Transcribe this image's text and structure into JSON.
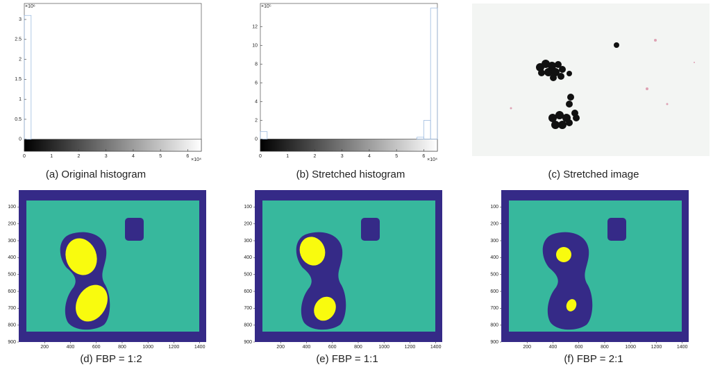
{
  "chart_data": [
    {
      "type": "histogram",
      "caption": "(a) Original histogram",
      "y_exponent": "×10⁶",
      "x_exponent": "×10⁴",
      "bins": [
        0,
        0.25,
        0.5,
        0.75,
        1,
        1.25,
        1.5,
        1.75,
        2,
        2.25,
        2.5,
        2.75,
        3,
        3.25,
        3.5,
        3.75,
        4,
        4.25,
        4.5,
        4.75,
        5,
        5.25,
        5.5,
        5.75,
        6,
        6.25,
        6.5
      ],
      "values": [
        3.1,
        0,
        0,
        0,
        0,
        0,
        0,
        0,
        0,
        0,
        0,
        0,
        0,
        0,
        0,
        0,
        0,
        0,
        0,
        0,
        0,
        0,
        0,
        0,
        0,
        0
      ],
      "color": "#9dbbe0",
      "xlim": [
        0,
        6.5
      ],
      "ylim": [
        -0.3,
        3.4
      ],
      "xticks": [
        0,
        1,
        2,
        3,
        4,
        5,
        6
      ],
      "yticks": [
        0,
        0.5,
        1,
        1.5,
        2,
        2.5,
        3
      ]
    },
    {
      "type": "histogram",
      "caption": "(b) Stretched histogram",
      "y_exponent": "×10⁵",
      "x_exponent": "×10⁴",
      "bins": [
        0,
        0.25,
        0.5,
        0.75,
        1,
        1.25,
        1.5,
        1.75,
        2,
        2.25,
        2.5,
        2.75,
        3,
        3.25,
        3.5,
        3.75,
        4,
        4.25,
        4.5,
        4.75,
        5,
        5.25,
        5.5,
        5.75,
        6,
        6.25,
        6.5
      ],
      "values": [
        0.8,
        0,
        0,
        0,
        0,
        0,
        0,
        0,
        0,
        0,
        0,
        0,
        0,
        0,
        0,
        0,
        0,
        0,
        0,
        0,
        0,
        0,
        0,
        0.2,
        2,
        14
      ],
      "color": "#9dbbe0",
      "xlim": [
        0,
        6.5
      ],
      "ylim": [
        -1.3,
        14.5
      ],
      "xticks": [
        0,
        1,
        2,
        3,
        4,
        5,
        6
      ],
      "yticks": [
        0,
        2,
        4,
        6,
        8,
        10,
        12
      ]
    },
    {
      "type": "segmentation",
      "caption": "(d) FBP = 1:2",
      "fg": "large",
      "xlim": [
        0,
        1450
      ],
      "ylim": [
        0,
        900
      ],
      "y_inverted": true,
      "xticks": [
        200,
        400,
        600,
        800,
        1000,
        1200,
        1400
      ],
      "yticks": [
        100,
        200,
        300,
        400,
        500,
        600,
        700,
        800,
        900
      ]
    },
    {
      "type": "segmentation",
      "caption": "(e) FBP = 1:1",
      "fg": "medium",
      "xlim": [
        0,
        1450
      ],
      "ylim": [
        0,
        900
      ],
      "y_inverted": true,
      "xticks": [
        200,
        400,
        600,
        800,
        1000,
        1200,
        1400
      ],
      "yticks": [
        100,
        200,
        300,
        400,
        500,
        600,
        700,
        800,
        900
      ]
    },
    {
      "type": "segmentation",
      "caption": "(f) FBP = 2:1",
      "fg": "small",
      "xlim": [
        0,
        1450
      ],
      "ylim": [
        0,
        900
      ],
      "y_inverted": true,
      "xticks": [
        200,
        400,
        600,
        800,
        1000,
        1200,
        1400
      ],
      "yticks": [
        100,
        200,
        300,
        400,
        500,
        600,
        700,
        800,
        900
      ]
    }
  ],
  "image": {
    "caption": "(c) Stretched image"
  }
}
